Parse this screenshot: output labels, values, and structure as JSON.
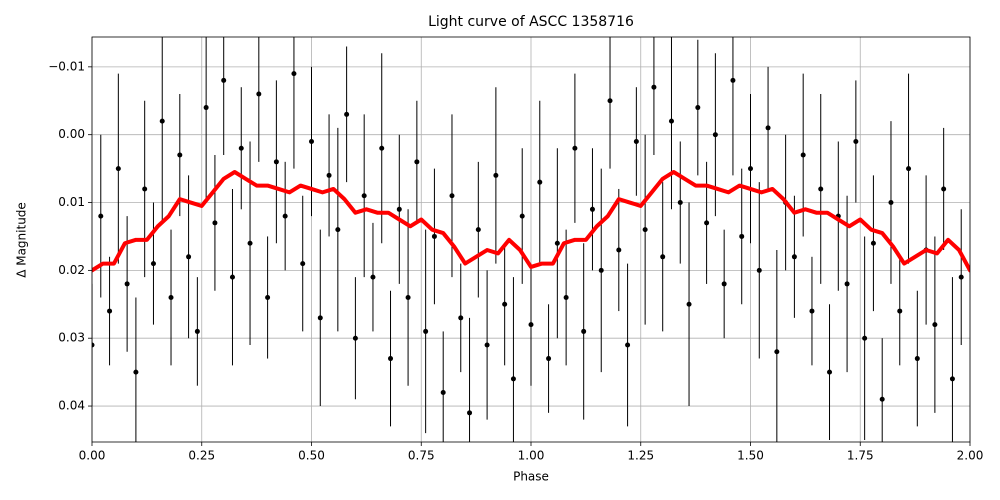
{
  "chart_data": {
    "type": "scatter",
    "title": "Light curve of ASCC 1358716",
    "x_label": "Phase",
    "y_label": "Δ Magnitude",
    "xlim": [
      0,
      2
    ],
    "ylim": [
      -0.0144,
      0.0453
    ],
    "y_inverted": true,
    "grid": true,
    "xticks": [
      {
        "value": 0,
        "label": "0.00"
      },
      0.25,
      {
        "value": 0.5,
        "label": "0.50"
      },
      0.75,
      {
        "value": 1,
        "label": "1.00"
      },
      1.25,
      {
        "value": 1.5,
        "label": "1.50"
      },
      1.75,
      {
        "value": 2,
        "label": "2.00"
      }
    ],
    "yticks": [
      {
        "value": -0.01,
        "label": "−0.01"
      },
      {
        "value": 0,
        "label": "0.00"
      },
      0.01,
      0.02,
      0.03,
      0.04
    ],
    "series": [
      {
        "type": "errorbar",
        "color": "#000000",
        "x": [
          0.0,
          0.02,
          0.04,
          0.06,
          0.08,
          0.1,
          0.12,
          0.14,
          0.16,
          0.18,
          0.2,
          0.22,
          0.24,
          0.26,
          0.28,
          0.3,
          0.32,
          0.34,
          0.36,
          0.38,
          0.4,
          0.42,
          0.44,
          0.46,
          0.48,
          0.5,
          0.52,
          0.54,
          0.56,
          0.58,
          0.6,
          0.62,
          0.64,
          0.66,
          0.68,
          0.7,
          0.72,
          0.74,
          0.76,
          0.78,
          0.8,
          0.82,
          0.84,
          0.86,
          0.88,
          0.9,
          0.92,
          0.94,
          0.96,
          0.98,
          1.0,
          1.02,
          1.04,
          1.06,
          1.08,
          1.1,
          1.12,
          1.14,
          1.16,
          1.18,
          1.2,
          1.22,
          1.24,
          1.26,
          1.28,
          1.3,
          1.32,
          1.34,
          1.36,
          1.38,
          1.4,
          1.42,
          1.44,
          1.46,
          1.48,
          1.5,
          1.52,
          1.54,
          1.56,
          1.58,
          1.6,
          1.62,
          1.64,
          1.66,
          1.68,
          1.7,
          1.72,
          1.74,
          1.76,
          1.78,
          1.8,
          1.82,
          1.84,
          1.86,
          1.88,
          1.9,
          1.92,
          1.94,
          1.96,
          1.98
        ],
        "values": [
          0.031,
          0.012,
          0.026,
          0.005,
          0.022,
          0.035,
          0.008,
          0.019,
          -0.002,
          0.024,
          0.003,
          0.018,
          0.029,
          -0.004,
          0.013,
          -0.008,
          0.021,
          0.002,
          0.016,
          -0.006,
          0.024,
          0.004,
          0.012,
          -0.009,
          0.019,
          0.001,
          0.027,
          0.006,
          0.014,
          -0.003,
          0.03,
          0.009,
          0.021,
          0.002,
          0.033,
          0.011,
          0.024,
          0.004,
          0.029,
          0.015,
          0.038,
          0.009,
          0.027,
          0.041,
          0.014,
          0.031,
          0.006,
          0.025,
          0.036,
          0.012,
          0.028,
          0.007,
          0.033,
          0.016,
          0.024,
          0.002,
          0.029,
          0.011,
          0.02,
          -0.005,
          0.017,
          0.031,
          0.001,
          0.014,
          -0.007,
          0.018,
          -0.002,
          0.01,
          0.025,
          -0.004,
          0.013,
          0.0,
          0.022,
          -0.008,
          0.015,
          0.005,
          0.02,
          -0.001,
          0.032,
          0.01,
          0.018,
          0.003,
          0.026,
          0.008,
          0.035,
          0.012,
          0.022,
          0.001,
          0.03,
          0.016,
          0.039,
          0.01,
          0.026,
          0.005,
          0.033,
          0.017,
          0.028,
          0.008,
          0.036,
          0.021
        ],
        "errors": [
          0.009,
          0.012,
          0.008,
          0.014,
          0.01,
          0.011,
          0.013,
          0.009,
          0.015,
          0.01,
          0.009,
          0.012,
          0.008,
          0.014,
          0.01,
          0.011,
          0.013,
          0.009,
          0.015,
          0.01,
          0.009,
          0.012,
          0.008,
          0.014,
          0.01,
          0.011,
          0.013,
          0.009,
          0.015,
          0.01,
          0.009,
          0.012,
          0.008,
          0.014,
          0.01,
          0.011,
          0.013,
          0.009,
          0.015,
          0.01,
          0.009,
          0.012,
          0.008,
          0.014,
          0.01,
          0.011,
          0.013,
          0.009,
          0.015,
          0.01,
          0.009,
          0.012,
          0.008,
          0.014,
          0.01,
          0.011,
          0.013,
          0.009,
          0.015,
          0.01,
          0.009,
          0.012,
          0.008,
          0.014,
          0.01,
          0.011,
          0.013,
          0.009,
          0.015,
          0.01,
          0.009,
          0.012,
          0.008,
          0.014,
          0.01,
          0.011,
          0.013,
          0.009,
          0.015,
          0.01,
          0.009,
          0.012,
          0.008,
          0.014,
          0.01,
          0.011,
          0.013,
          0.009,
          0.015,
          0.01,
          0.009,
          0.012,
          0.008,
          0.014,
          0.01,
          0.011,
          0.013,
          0.009,
          0.015,
          0.01
        ]
      },
      {
        "type": "line",
        "color": "#ff0000",
        "x": [
          0,
          0.025,
          0.05,
          0.075,
          0.1,
          0.125,
          0.15,
          0.175,
          0.2,
          0.225,
          0.25,
          0.275,
          0.3,
          0.325,
          0.35,
          0.375,
          0.4,
          0.425,
          0.45,
          0.475,
          0.5,
          0.525,
          0.55,
          0.575,
          0.6,
          0.625,
          0.65,
          0.675,
          0.7,
          0.725,
          0.75,
          0.775,
          0.8,
          0.825,
          0.85,
          0.875,
          0.9,
          0.925,
          0.95,
          0.975,
          1,
          1.025,
          1.05,
          1.075,
          1.1,
          1.125,
          1.15,
          1.175,
          1.2,
          1.225,
          1.25,
          1.275,
          1.3,
          1.325,
          1.35,
          1.375,
          1.4,
          1.425,
          1.45,
          1.475,
          1.5,
          1.525,
          1.55,
          1.575,
          1.6,
          1.625,
          1.65,
          1.675,
          1.7,
          1.725,
          1.75,
          1.775,
          1.8,
          1.825,
          1.85,
          1.875,
          1.9,
          1.925,
          1.95,
          1.975,
          2
        ],
        "values": [
          0.02,
          0.019,
          0.019,
          0.016,
          0.0155,
          0.0155,
          0.0135,
          0.012,
          0.0095,
          0.01,
          0.0105,
          0.0085,
          0.0065,
          0.0055,
          0.0065,
          0.0075,
          0.0075,
          0.008,
          0.0085,
          0.0075,
          0.008,
          0.0085,
          0.008,
          0.0095,
          0.0115,
          0.011,
          0.0115,
          0.0115,
          0.0125,
          0.0135,
          0.0125,
          0.014,
          0.0145,
          0.0165,
          0.019,
          0.018,
          0.017,
          0.0175,
          0.0155,
          0.017,
          0.0195,
          0.019,
          0.019,
          0.016,
          0.0155,
          0.0155,
          0.0135,
          0.012,
          0.0095,
          0.01,
          0.0105,
          0.0085,
          0.0065,
          0.0055,
          0.0065,
          0.0075,
          0.0075,
          0.008,
          0.0085,
          0.0075,
          0.008,
          0.0085,
          0.008,
          0.0095,
          0.0115,
          0.011,
          0.0115,
          0.0115,
          0.0125,
          0.0135,
          0.0125,
          0.014,
          0.0145,
          0.0165,
          0.019,
          0.018,
          0.017,
          0.0175,
          0.0155,
          0.017,
          0.02
        ]
      }
    ]
  }
}
